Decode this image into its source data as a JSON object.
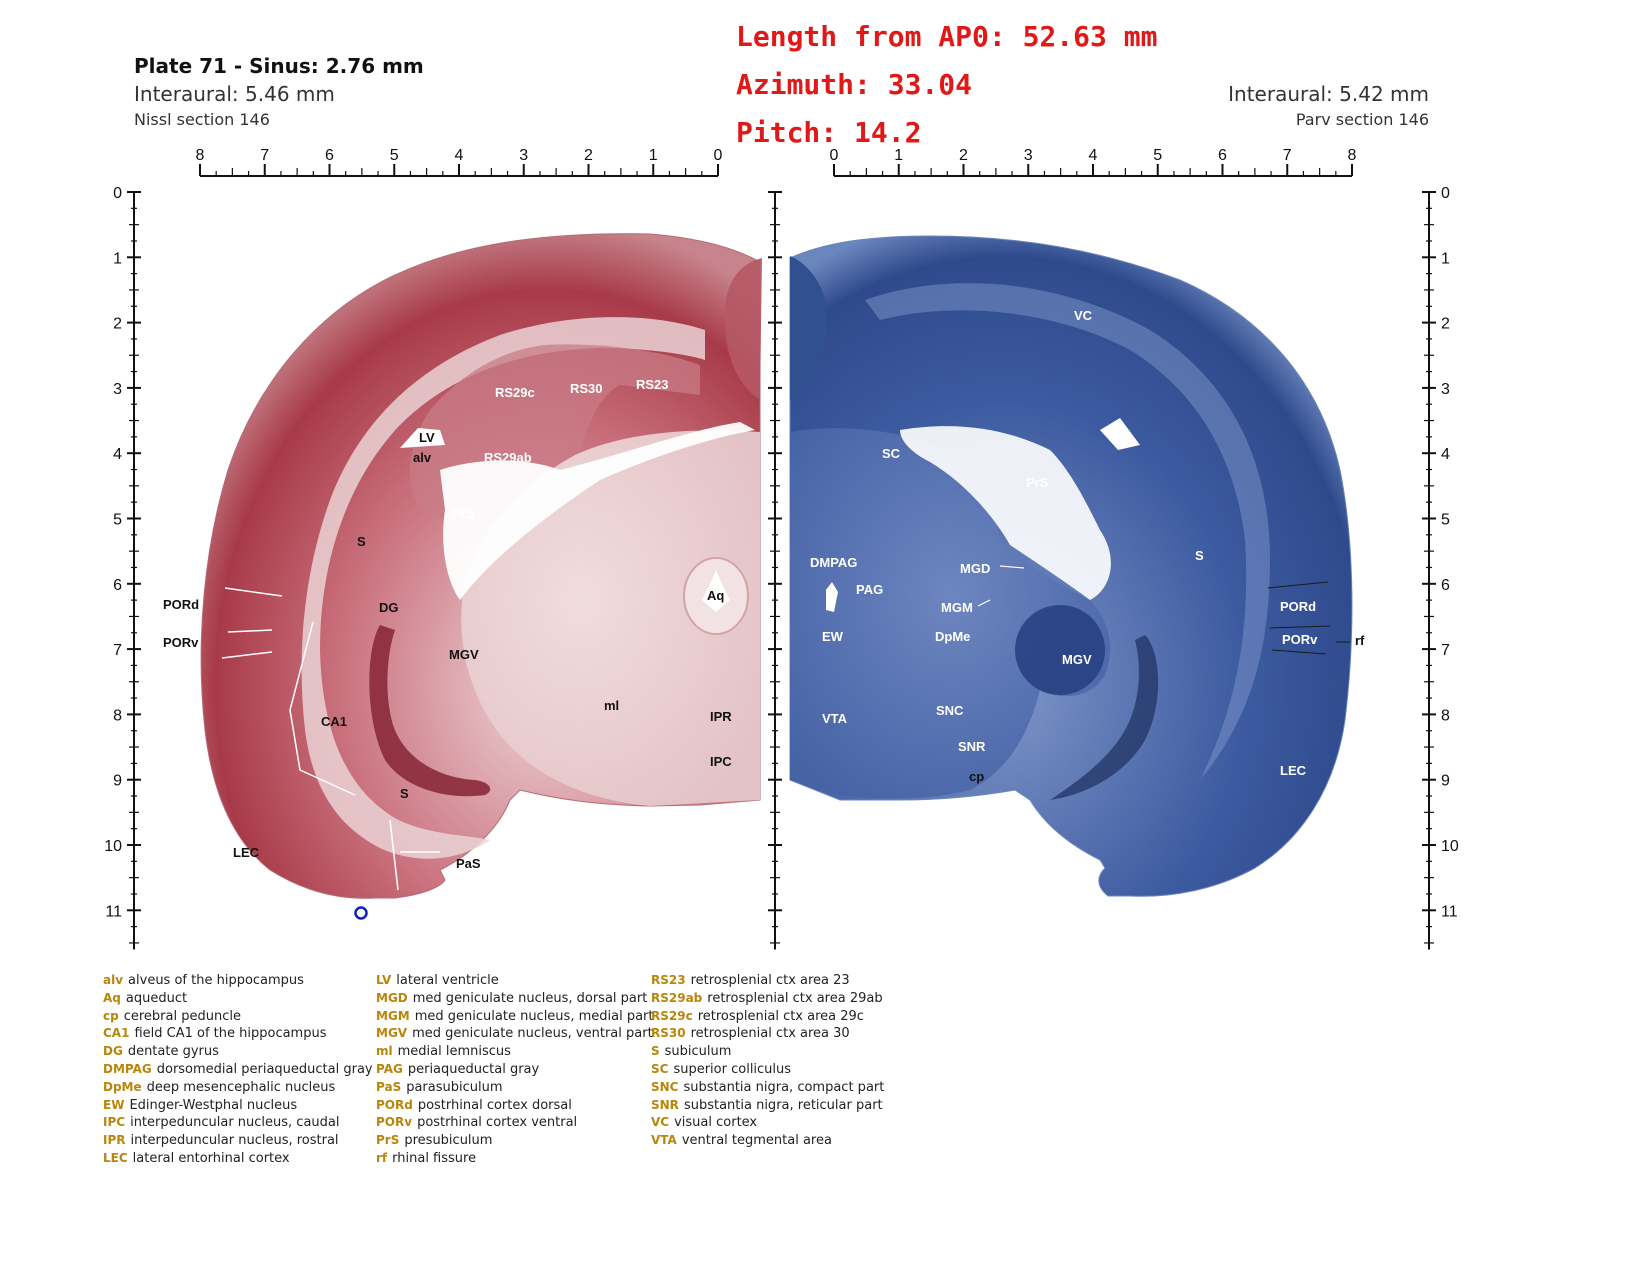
{
  "header": {
    "left_title": "Plate 71 - Sinus: 2.76 mm",
    "left_interaural": "Interaural: 5.46 mm",
    "left_section": "Nissl section 146",
    "right_interaural": "Interaural: 5.42 mm",
    "right_section": "Parv section 146"
  },
  "metrics": {
    "length": "Length from AP0: 52.63 mm",
    "azimuth": "Azimuth: 33.04",
    "pitch": "Pitch: 14.2"
  },
  "colors": {
    "nissl_stain": "#a83a48",
    "parv_stain": "#3c5aa0",
    "metric_text": "#e01818",
    "legend_abbr": "#b8860b",
    "marker": "#1020c0"
  },
  "scales": {
    "top_left_labels": [
      "8",
      "7",
      "6",
      "5",
      "4",
      "3",
      "2",
      "1",
      "0"
    ],
    "top_right_labels": [
      "0",
      "1",
      "2",
      "3",
      "4",
      "5",
      "6",
      "7",
      "8"
    ],
    "vertical_labels": [
      "0",
      "1",
      "2",
      "3",
      "4",
      "5",
      "6",
      "7",
      "8",
      "9",
      "10",
      "11"
    ]
  },
  "left_labels": [
    "RS29c",
    "RS30",
    "RS23",
    "LV",
    "alv",
    "RS29ab",
    "PrS",
    "S",
    "PORd",
    "PORv",
    "DG",
    "MGV",
    "Aq",
    "ml",
    "IPR",
    "CA1",
    "IPC",
    "S",
    "LEC",
    "PaS"
  ],
  "right_labels": [
    "VC",
    "SC",
    "PrS",
    "DMPAG",
    "PAG",
    "MGD",
    "MGM",
    "S",
    "PORd",
    "PORv",
    "rf",
    "EW",
    "DpMe",
    "MGV",
    "VTA",
    "SNC",
    "SNR",
    "cp",
    "LEC"
  ],
  "legend": [
    [
      {
        "abbr": "alv",
        "name": "alveus of the hippocampus"
      },
      {
        "abbr": "Aq",
        "name": "aqueduct"
      },
      {
        "abbr": "cp",
        "name": "cerebral peduncle"
      },
      {
        "abbr": "CA1",
        "name": "field CA1 of the hippocampus"
      },
      {
        "abbr": "DG",
        "name": "dentate gyrus"
      },
      {
        "abbr": "DMPAG",
        "name": "dorsomedial periaqueductal gray"
      },
      {
        "abbr": "DpMe",
        "name": "deep mesencephalic nucleus"
      },
      {
        "abbr": "EW",
        "name": "Edinger-Westphal nucleus"
      },
      {
        "abbr": "IPC",
        "name": "interpeduncular nucleus, caudal"
      },
      {
        "abbr": "IPR",
        "name": "interpeduncular nucleus, rostral"
      },
      {
        "abbr": "LEC",
        "name": "lateral entorhinal cortex"
      }
    ],
    [
      {
        "abbr": "LV",
        "name": "lateral ventricle"
      },
      {
        "abbr": "MGD",
        "name": "med geniculate nucleus, dorsal part"
      },
      {
        "abbr": "MGM",
        "name": "med geniculate nucleus, medial part"
      },
      {
        "abbr": "MGV",
        "name": "med geniculate nucleus, ventral part"
      },
      {
        "abbr": "ml",
        "name": "medial lemniscus"
      },
      {
        "abbr": "PAG",
        "name": "periaqueductal gray"
      },
      {
        "abbr": "PaS",
        "name": "parasubiculum"
      },
      {
        "abbr": "PORd",
        "name": "postrhinal cortex dorsal"
      },
      {
        "abbr": "PORv",
        "name": "postrhinal cortex ventral"
      },
      {
        "abbr": "PrS",
        "name": "presubiculum"
      },
      {
        "abbr": "rf",
        "name": "rhinal fissure"
      }
    ],
    [
      {
        "abbr": "RS23",
        "name": "retrosplenial ctx area 23"
      },
      {
        "abbr": "RS29ab",
        "name": "retrosplenial ctx area 29ab"
      },
      {
        "abbr": "RS29c",
        "name": "retrosplenial ctx area 29c"
      },
      {
        "abbr": "RS30",
        "name": "retrosplenial ctx area 30"
      },
      {
        "abbr": "S",
        "name": "subiculum"
      },
      {
        "abbr": "SC",
        "name": "superior colliculus"
      },
      {
        "abbr": "SNC",
        "name": "substantia nigra, compact part"
      },
      {
        "abbr": "SNR",
        "name": "substantia nigra, reticular part"
      },
      {
        "abbr": "VC",
        "name": "visual cortex"
      },
      {
        "abbr": "VTA",
        "name": "ventral tegmental area"
      }
    ]
  ]
}
